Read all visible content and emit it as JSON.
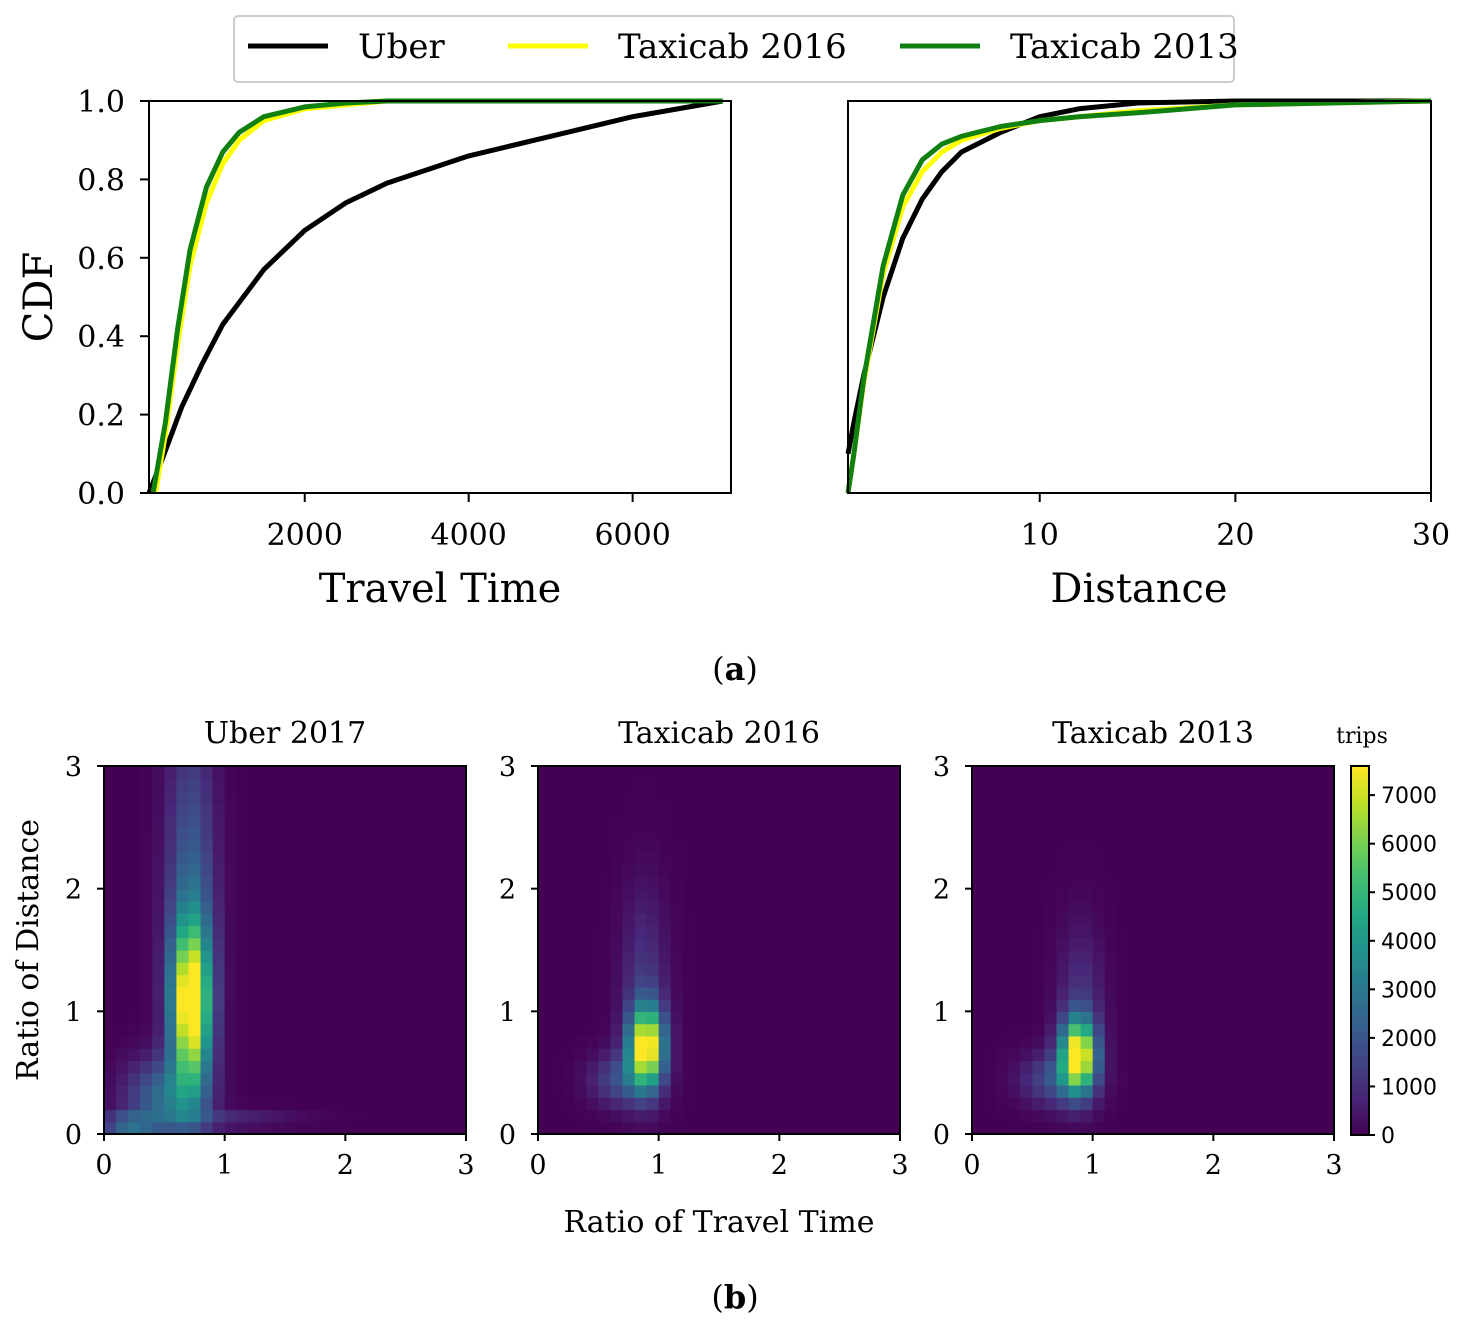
{
  "figure_captions": {
    "a": "a",
    "b": "b"
  },
  "chart_data": [
    {
      "type": "line",
      "panel": "a-left",
      "title": "",
      "xlabel": "Travel Time",
      "ylabel": "CDF",
      "xlim": [
        100,
        7200
      ],
      "ylim": [
        0,
        1
      ],
      "xticks": [
        2000,
        4000,
        6000
      ],
      "yticks": [
        "0.0",
        "0.2",
        "0.4",
        "0.6",
        "0.8",
        "1.0"
      ],
      "legend": {
        "location": "top-center",
        "entries": [
          {
            "label": "Uber",
            "color": "#000000"
          },
          {
            "label": "Taxicab 2016",
            "color": "#ffff00"
          },
          {
            "label": "Taxicab 2013",
            "color": "#108010"
          }
        ]
      },
      "series": [
        {
          "name": "Uber",
          "color": "#000000",
          "x": [
            100,
            250,
            500,
            750,
            1000,
            1500,
            2000,
            2500,
            3000,
            4000,
            5000,
            6000,
            7100
          ],
          "y": [
            0.0,
            0.08,
            0.22,
            0.33,
            0.43,
            0.57,
            0.67,
            0.74,
            0.79,
            0.86,
            0.91,
            0.96,
            1.0
          ]
        },
        {
          "name": "Taxicab 2016",
          "color": "#ffff00",
          "x": [
            180,
            300,
            450,
            600,
            800,
            1000,
            1200,
            1500,
            2000,
            2500,
            3000,
            4000,
            7100
          ],
          "y": [
            0.0,
            0.15,
            0.38,
            0.58,
            0.74,
            0.84,
            0.9,
            0.95,
            0.98,
            0.99,
            1.0,
            1.0,
            1.0
          ]
        },
        {
          "name": "Taxicab 2013",
          "color": "#108010",
          "x": [
            150,
            300,
            450,
            600,
            800,
            1000,
            1200,
            1500,
            2000,
            2500,
            3000,
            4000,
            7100
          ],
          "y": [
            0.0,
            0.18,
            0.42,
            0.62,
            0.78,
            0.87,
            0.92,
            0.96,
            0.985,
            0.995,
            1.0,
            1.0,
            1.0
          ]
        }
      ]
    },
    {
      "type": "line",
      "panel": "a-right",
      "title": "",
      "xlabel": "Distance",
      "ylabel": "",
      "xlim": [
        0.2,
        30
      ],
      "ylim": [
        0,
        1
      ],
      "xticks": [
        10,
        20,
        30
      ],
      "series": [
        {
          "name": "Uber",
          "color": "#000000",
          "x": [
            0.2,
            0.5,
            1,
            2,
            3,
            4,
            5,
            6,
            8,
            10,
            12,
            15,
            20,
            30
          ],
          "y": [
            0.1,
            0.18,
            0.3,
            0.5,
            0.65,
            0.75,
            0.82,
            0.87,
            0.92,
            0.96,
            0.98,
            0.995,
            1.0,
            1.0
          ]
        },
        {
          "name": "Taxicab 2016",
          "color": "#ffff00",
          "x": [
            0.2,
            0.5,
            1,
            2,
            3,
            4,
            5,
            6,
            8,
            10,
            12,
            15,
            20,
            30
          ],
          "y": [
            0.0,
            0.1,
            0.28,
            0.56,
            0.73,
            0.82,
            0.87,
            0.9,
            0.93,
            0.95,
            0.96,
            0.975,
            0.99,
            1.0
          ]
        },
        {
          "name": "Taxicab 2013",
          "color": "#108010",
          "x": [
            0.2,
            0.5,
            1,
            2,
            3,
            4,
            5,
            6,
            8,
            10,
            12,
            15,
            20,
            30
          ],
          "y": [
            0.0,
            0.1,
            0.29,
            0.58,
            0.76,
            0.85,
            0.89,
            0.91,
            0.935,
            0.95,
            0.96,
            0.97,
            0.99,
            1.0
          ]
        }
      ]
    },
    {
      "type": "heatmap",
      "panel": "b-1",
      "title": "Uber 2017",
      "xlabel": "",
      "ylabel": "Ratio of Distance",
      "xlim": [
        0,
        3
      ],
      "ylim": [
        0,
        3
      ],
      "xticks": [
        0,
        1,
        2,
        3
      ],
      "yticks": [
        0,
        1,
        2,
        3
      ],
      "blobs": [
        {
          "cx": 0.72,
          "cy": 1.05,
          "sx": 0.11,
          "sy": 0.45,
          "peak": 7600
        },
        {
          "cx": 0.72,
          "cy": 1.9,
          "sx": 0.14,
          "sy": 1.0,
          "peak": 2300
        },
        {
          "cx": 0.5,
          "cy": 0.3,
          "sx": 0.22,
          "sy": 0.22,
          "peak": 2600
        },
        {
          "cx": 0.2,
          "cy": 0.08,
          "sx": 0.15,
          "sy": 0.06,
          "peak": 2500
        },
        {
          "cx": 1.0,
          "cy": 0.12,
          "sx": 0.4,
          "sy": 0.05,
          "peak": 900
        }
      ]
    },
    {
      "type": "heatmap",
      "panel": "b-2",
      "title": "Taxicab 2016",
      "xlabel": "Ratio of Travel Time",
      "ylabel": "",
      "xlim": [
        0,
        3
      ],
      "ylim": [
        0,
        3
      ],
      "xticks": [
        0,
        1,
        2,
        3
      ],
      "yticks": [
        0,
        1,
        2,
        3
      ],
      "blobs": [
        {
          "cx": 0.9,
          "cy": 0.72,
          "sx": 0.1,
          "sy": 0.22,
          "peak": 7600
        },
        {
          "cx": 0.88,
          "cy": 1.2,
          "sx": 0.13,
          "sy": 0.55,
          "peak": 1200
        },
        {
          "cx": 0.7,
          "cy": 0.45,
          "sx": 0.18,
          "sy": 0.15,
          "peak": 1800
        }
      ]
    },
    {
      "type": "heatmap",
      "panel": "b-3",
      "title": "Taxicab 2013",
      "xlabel": "",
      "ylabel": "",
      "xlim": [
        0,
        3
      ],
      "ylim": [
        0,
        3
      ],
      "xticks": [
        0,
        1,
        2,
        3
      ],
      "yticks": [
        0,
        1,
        2,
        3
      ],
      "colorbar": {
        "label": "trips",
        "ticks": [
          0,
          1000,
          2000,
          3000,
          4000,
          5000,
          6000,
          7000
        ],
        "max": 7600
      },
      "blobs": [
        {
          "cx": 0.88,
          "cy": 0.65,
          "sx": 0.1,
          "sy": 0.2,
          "peak": 7600
        },
        {
          "cx": 0.9,
          "cy": 1.05,
          "sx": 0.13,
          "sy": 0.45,
          "peak": 1100
        },
        {
          "cx": 0.7,
          "cy": 0.45,
          "sx": 0.2,
          "sy": 0.15,
          "peak": 1800
        }
      ]
    }
  ]
}
